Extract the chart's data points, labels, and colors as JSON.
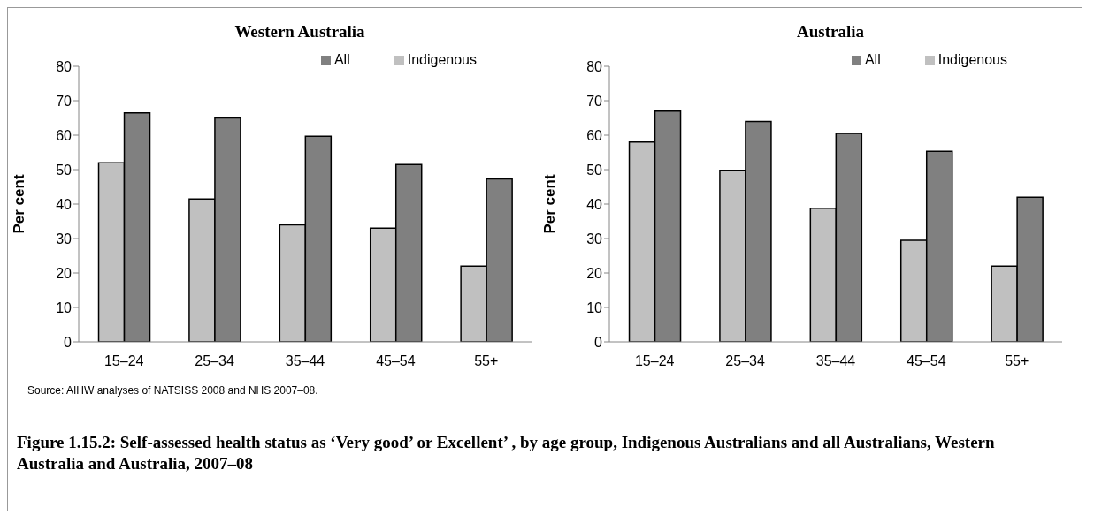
{
  "chart_data": [
    {
      "type": "bar",
      "title": "Western Australia",
      "ylabel": "Per cent",
      "categories": [
        "15–24",
        "25–34",
        "35–44",
        "45–54",
        "55+"
      ],
      "series": [
        {
          "name": "Indigenous",
          "color": "#c0c0c0",
          "values": [
            52,
            41.5,
            34,
            33,
            22
          ]
        },
        {
          "name": "All",
          "color": "#808080",
          "values": [
            66.5,
            65,
            59.7,
            51.5,
            47.3
          ]
        }
      ],
      "ylim": [
        0,
        80
      ],
      "yticks": [
        0,
        10,
        20,
        30,
        40,
        50,
        60,
        70,
        80
      ],
      "grid": false,
      "legend": "top right",
      "annotations": [
        "Source: AIHW analyses of NATSISS 2008 and NHS 2007–08.",
        "Figure 1.15.2: Self-assessed health status as ‘Very good’ or Excellent’ , by age group, Indigenous Australians and all Australians, Western Australia and Australia, 2007–08"
      ]
    },
    {
      "type": "bar",
      "title": "Australia",
      "ylabel": "Per cent",
      "categories": [
        "15–24",
        "25–34",
        "35–44",
        "45–54",
        "55+"
      ],
      "series": [
        {
          "name": "Indigenous",
          "color": "#c0c0c0",
          "values": [
            58,
            49.8,
            38.8,
            29.5,
            22
          ]
        },
        {
          "name": "All",
          "color": "#808080",
          "values": [
            67,
            64,
            60.5,
            55.3,
            42
          ]
        }
      ],
      "ylim": [
        0,
        80
      ],
      "yticks": [
        0,
        10,
        20,
        30,
        40,
        50,
        60,
        70,
        80
      ],
      "grid": false,
      "legend": "top right"
    }
  ]
}
